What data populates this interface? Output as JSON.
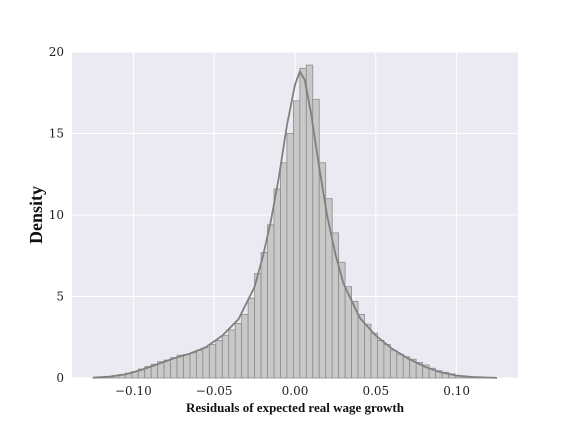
{
  "chart_data": {
    "type": "bar",
    "title": "",
    "xlabel": "Residuals of expected real wage growth",
    "ylabel": "Density",
    "xlim": [
      -0.138,
      0.138
    ],
    "ylim": [
      0,
      20
    ],
    "xticks": [
      -0.1,
      -0.05,
      0.0,
      0.05,
      0.1
    ],
    "xtick_labels": [
      "−0.10",
      "−0.05",
      "0.00",
      "0.05",
      "0.10"
    ],
    "yticks": [
      0,
      5,
      10,
      15,
      20
    ],
    "ytick_labels": [
      "0",
      "5",
      "10",
      "15",
      "20"
    ],
    "grid": true,
    "legend": "none",
    "bin_edges_start": -0.125,
    "bin_width": 0.004,
    "densities": [
      0.03,
      0.06,
      0.1,
      0.15,
      0.22,
      0.3,
      0.4,
      0.55,
      0.7,
      0.85,
      1.0,
      1.1,
      1.25,
      1.4,
      1.45,
      1.55,
      1.7,
      1.85,
      2.05,
      2.3,
      2.6,
      2.95,
      3.35,
      3.9,
      4.9,
      6.4,
      7.7,
      9.4,
      11.6,
      13.2,
      15.0,
      17.0,
      19.0,
      19.2,
      17.1,
      13.2,
      11.0,
      8.9,
      7.1,
      5.6,
      4.7,
      3.9,
      3.3,
      2.75,
      2.3,
      2.05,
      1.7,
      1.45,
      1.3,
      1.15,
      0.95,
      0.8,
      0.6,
      0.45,
      0.35,
      0.25,
      0.15,
      0.1,
      0.07,
      0.04,
      0.02,
      0.01
    ],
    "kde": {
      "x": [
        -0.125,
        -0.115,
        -0.105,
        -0.095,
        -0.085,
        -0.075,
        -0.065,
        -0.055,
        -0.045,
        -0.035,
        -0.025,
        -0.02,
        -0.015,
        -0.01,
        -0.005,
        0.0,
        0.003,
        0.006,
        0.01,
        0.015,
        0.02,
        0.025,
        0.03,
        0.04,
        0.05,
        0.06,
        0.07,
        0.08,
        0.09,
        0.1,
        0.11,
        0.125
      ],
      "y": [
        0.02,
        0.08,
        0.22,
        0.5,
        0.85,
        1.2,
        1.5,
        1.9,
        2.6,
        3.6,
        5.6,
        7.4,
        9.6,
        12.3,
        15.5,
        18.0,
        18.8,
        18.3,
        16.2,
        12.9,
        9.9,
        7.6,
        5.8,
        3.7,
        2.6,
        1.8,
        1.2,
        0.7,
        0.35,
        0.15,
        0.06,
        0.01
      ]
    },
    "bar_color": "#c8c8c8",
    "bar_edge_color": "#8c8c8c",
    "kde_color": "#808080",
    "plot_background": "#eaeaf2",
    "grid_color": "#ffffff"
  }
}
